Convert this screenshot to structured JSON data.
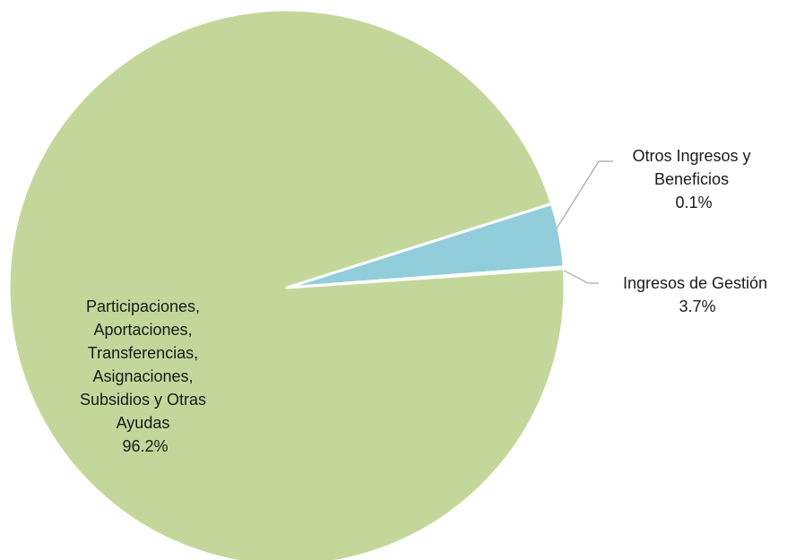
{
  "chart_data": {
    "type": "pie",
    "title": "",
    "legend": "none",
    "slices": [
      {
        "label_lines": [
          "Participaciones,",
          "Aportaciones,",
          "Transferencias,",
          "Asignaciones,",
          "Subsidios y Otras",
          "Ayudas"
        ],
        "value": 96.2,
        "value_label": "96.2%",
        "color": "#c4d79b"
      },
      {
        "label_lines": [
          "Otros Ingresos y",
          "Beneficios"
        ],
        "value": 0.1,
        "value_label": "0.1%",
        "color": "#c4d79b"
      },
      {
        "label_lines": [
          "Ingresos de Gestión"
        ],
        "value": 3.7,
        "value_label": "3.7%",
        "color": "#92cddc"
      }
    ]
  }
}
